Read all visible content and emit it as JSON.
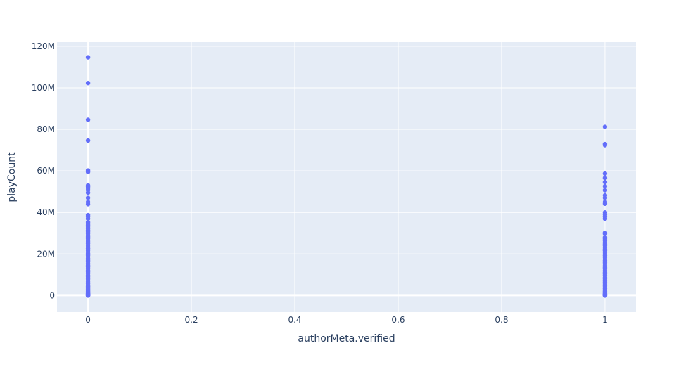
{
  "chart_data": {
    "type": "scatter",
    "title": "",
    "xlabel": "authorMeta.verified",
    "ylabel": "playCount",
    "xlim": [
      -0.06,
      1.06
    ],
    "ylim": [
      -8000000,
      122000000
    ],
    "grid": true,
    "legend": "none",
    "x_ticks": [
      0,
      0.2,
      0.4,
      0.6,
      0.8,
      1
    ],
    "x_tick_labels": [
      "0",
      "0.2",
      "0.4",
      "0.6",
      "0.8",
      "1"
    ],
    "y_ticks": [
      0,
      20000000,
      40000000,
      60000000,
      80000000,
      100000000,
      120000000
    ],
    "y_tick_labels": [
      "0",
      "20M",
      "40M",
      "60M",
      "80M",
      "100M",
      "120M"
    ],
    "colors": {
      "marker": "#636efa",
      "plot_bg": "#e5ecf6",
      "grid": "#ffffff",
      "text": "#2a3f5f"
    },
    "series": [
      {
        "x": [
          0,
          0,
          0,
          0,
          0,
          0,
          0,
          0,
          0,
          0,
          0,
          0,
          0,
          0,
          0,
          0,
          0,
          0,
          0,
          0,
          0,
          0,
          0,
          0,
          0,
          0,
          0,
          0,
          0,
          0,
          0,
          0,
          0,
          0,
          0,
          0,
          0,
          0,
          0,
          0,
          0,
          0,
          0,
          0,
          0,
          0,
          0,
          0,
          0,
          0,
          0,
          0,
          0,
          0,
          0,
          0,
          0,
          0,
          0,
          0,
          0,
          0,
          0,
          0,
          0,
          0,
          0,
          0,
          0,
          0,
          0,
          0,
          0,
          0,
          0,
          0
        ],
        "y": [
          114700000,
          102300000,
          84600000,
          74600000,
          60200000,
          59500000,
          53000000,
          52400000,
          51700000,
          50800000,
          49500000,
          47000000,
          45000000,
          44000000,
          38700000,
          38000000,
          37000000,
          35300000,
          34500000,
          33800000,
          33000000,
          32200000,
          31400000,
          30600000,
          29800000,
          29000000,
          28200000,
          27400000,
          26600000,
          25800000,
          25000000,
          24200000,
          23400000,
          22600000,
          21800000,
          21000000,
          20200000,
          19400000,
          18600000,
          17800000,
          17000000,
          16200000,
          15400000,
          14600000,
          13800000,
          13000000,
          12200000,
          11400000,
          10600000,
          9800000,
          9000000,
          8200000,
          7400000,
          6600000,
          5800000,
          5000000,
          4500000,
          4000000,
          3500000,
          3000000,
          2600000,
          2200000,
          1800000,
          1500000,
          1200000,
          1000000,
          800000,
          600000,
          450000,
          300000,
          200000,
          120000,
          60000,
          30000,
          10000,
          0
        ]
      },
      {
        "x": [
          1,
          1,
          1,
          1,
          1,
          1,
          1,
          1,
          1,
          1,
          1,
          1,
          1,
          1,
          1,
          1,
          1,
          1,
          1,
          1,
          1,
          1,
          1,
          1,
          1,
          1,
          1,
          1,
          1,
          1,
          1,
          1,
          1,
          1,
          1,
          1,
          1,
          1,
          1,
          1,
          1,
          1,
          1,
          1,
          1,
          1,
          1,
          1,
          1,
          1,
          1,
          1,
          1,
          1,
          1,
          1,
          1,
          1,
          1,
          1,
          1
        ],
        "y": [
          81200000,
          72900000,
          72400000,
          58700000,
          56600000,
          54600000,
          52600000,
          50700000,
          48200000,
          47000000,
          45000000,
          44200000,
          40000000,
          39000000,
          38000000,
          37000000,
          30200000,
          29700000,
          28000000,
          27200000,
          26400000,
          25600000,
          24800000,
          24000000,
          23200000,
          22400000,
          21600000,
          20800000,
          20000000,
          19200000,
          18400000,
          17600000,
          16800000,
          16000000,
          15200000,
          14400000,
          13600000,
          12800000,
          12000000,
          11200000,
          10400000,
          9600000,
          8800000,
          8000000,
          7200000,
          6400000,
          5600000,
          4800000,
          4000000,
          3300000,
          2700000,
          2100000,
          1600000,
          1200000,
          900000,
          600000,
          400000,
          200000,
          100000,
          40000,
          0
        ]
      }
    ]
  }
}
